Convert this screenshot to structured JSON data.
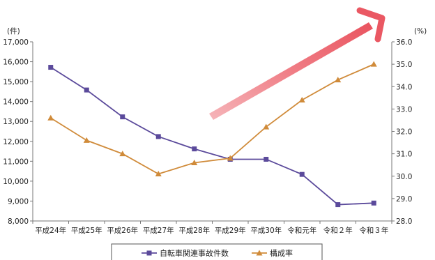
{
  "chart_data": {
    "type": "line",
    "categories": [
      "平成24年",
      "平成25年",
      "平成26年",
      "平成27年",
      "平成28年",
      "平成29年",
      "平成30年",
      "令和元年",
      "令和２年",
      "令和３年"
    ],
    "left_unit": "(件)",
    "right_unit": "(%)",
    "left_ylim": [
      8000,
      17000
    ],
    "left_ticks": [
      8000,
      9000,
      10000,
      11000,
      12000,
      13000,
      14000,
      15000,
      16000,
      17000
    ],
    "left_tick_labels": [
      "8,000",
      "9,000",
      "10,000",
      "11,000",
      "12,000",
      "13,000",
      "14,000",
      "15,000",
      "16,000",
      "17,000"
    ],
    "right_ylim": [
      28.0,
      36.0
    ],
    "right_ticks": [
      28.0,
      29.0,
      30.0,
      31.0,
      32.0,
      33.0,
      34.0,
      35.0,
      36.0
    ],
    "right_tick_labels": [
      "28.0",
      "29.0",
      "30.0",
      "31.0",
      "32.0",
      "33.0",
      "34.0",
      "35.0",
      "36.0"
    ],
    "series": [
      {
        "name": "自転車関連事故件数",
        "axis": "left",
        "color": "#5b4a9b",
        "marker": "square",
        "values": [
          15720,
          14580,
          13230,
          12240,
          11620,
          11100,
          11100,
          10340,
          8820,
          8900
        ]
      },
      {
        "name": "構成率",
        "axis": "right",
        "color": "#d08b3a",
        "marker": "triangle",
        "values": [
          32.6,
          31.6,
          31.0,
          30.1,
          30.6,
          30.8,
          32.2,
          33.4,
          34.3,
          35.0
        ]
      }
    ],
    "grid": false,
    "legend_position": "bottom",
    "annotation": {
      "type": "arrow",
      "color": "#e8505b",
      "meaning": "rising trend"
    }
  }
}
